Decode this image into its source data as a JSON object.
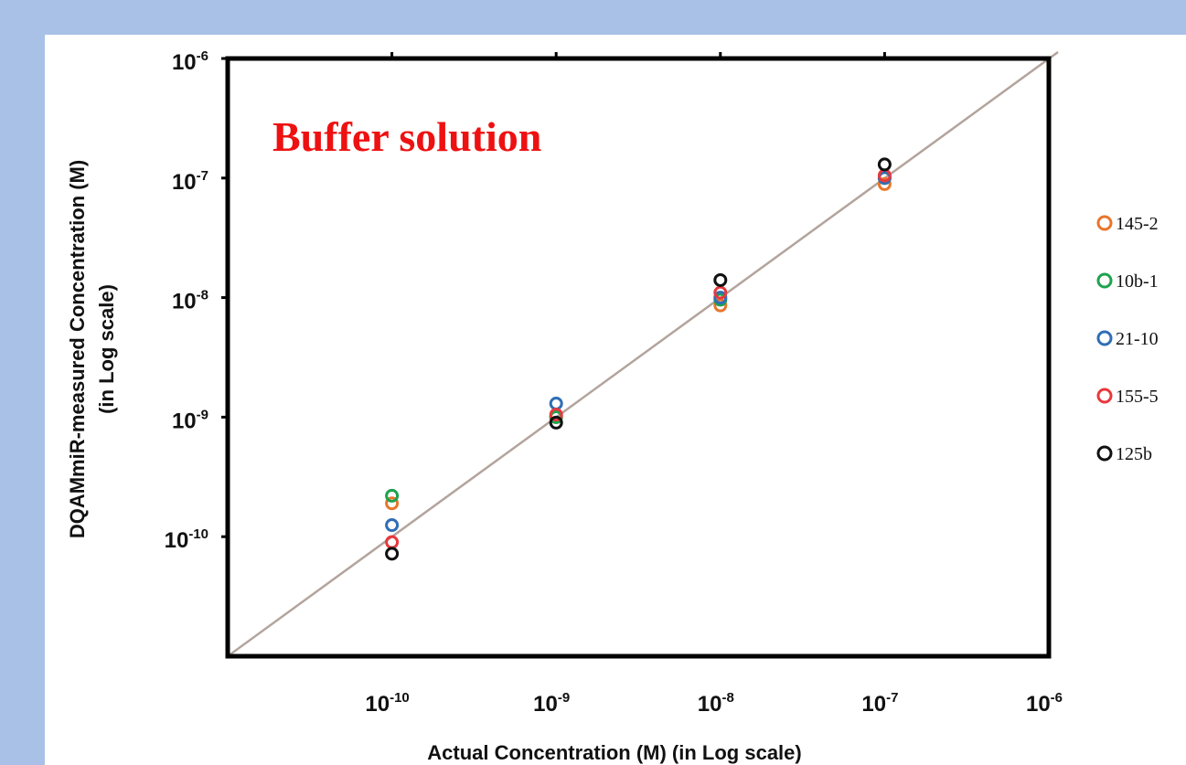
{
  "chart_data": {
    "type": "scatter",
    "title": "",
    "annotation": "Buffer solution",
    "xlabel": "Actual Concentration (M) (in Log scale)",
    "ylabel": [
      "DQAMmiR-measured  Concentration (M)",
      "(in Log scale)"
    ],
    "x_scale": "log",
    "y_scale": "log",
    "xlim": [
      1e-11,
      1e-06
    ],
    "ylim": [
      1e-11,
      1e-06
    ],
    "x_ticks": [
      {
        "base": "10",
        "exp": "-10"
      },
      {
        "base": "10",
        "exp": "-9"
      },
      {
        "base": "10",
        "exp": "-8"
      },
      {
        "base": "10",
        "exp": "-7"
      },
      {
        "base": "10",
        "exp": "-6"
      }
    ],
    "y_ticks": [
      {
        "base": "10",
        "exp": "-10"
      },
      {
        "base": "10",
        "exp": "-9"
      },
      {
        "base": "10",
        "exp": "-8"
      },
      {
        "base": "10",
        "exp": "-7"
      },
      {
        "base": "10",
        "exp": "-6"
      }
    ],
    "reference_line": {
      "type": "y=x",
      "color": "#b3a49c"
    },
    "grid": false,
    "legend_position": "right",
    "series": [
      {
        "name": "145-2",
        "color": "#e8762c",
        "points": [
          [
            1e-10,
            1.9e-10
          ],
          [
            1e-09,
            1e-09
          ],
          [
            1e-08,
            8.6e-09
          ],
          [
            1e-07,
            8.9e-08
          ]
        ]
      },
      {
        "name": "10b-1",
        "color": "#1ea34f",
        "points": [
          [
            1e-10,
            2.2e-10
          ],
          [
            1e-09,
            1e-09
          ],
          [
            1e-08,
            9.6e-09
          ],
          [
            1e-07,
            1e-07
          ]
        ]
      },
      {
        "name": "21-10",
        "color": "#2f6eb5",
        "points": [
          [
            1e-10,
            1.25e-10
          ],
          [
            1e-09,
            1.3e-09
          ],
          [
            1e-08,
            1e-08
          ],
          [
            1e-07,
            1e-07
          ]
        ]
      },
      {
        "name": "155-5",
        "color": "#e8383d",
        "points": [
          [
            1e-10,
            9e-11
          ],
          [
            1e-09,
            1.05e-09
          ],
          [
            1e-08,
            1.1e-08
          ],
          [
            1e-07,
            1.05e-07
          ]
        ]
      },
      {
        "name": "125b",
        "color": "#111111",
        "points": [
          [
            1e-10,
            7.2e-11
          ],
          [
            1e-09,
            9e-10
          ],
          [
            1e-08,
            1.4e-08
          ],
          [
            1e-07,
            1.3e-07
          ]
        ]
      }
    ]
  }
}
